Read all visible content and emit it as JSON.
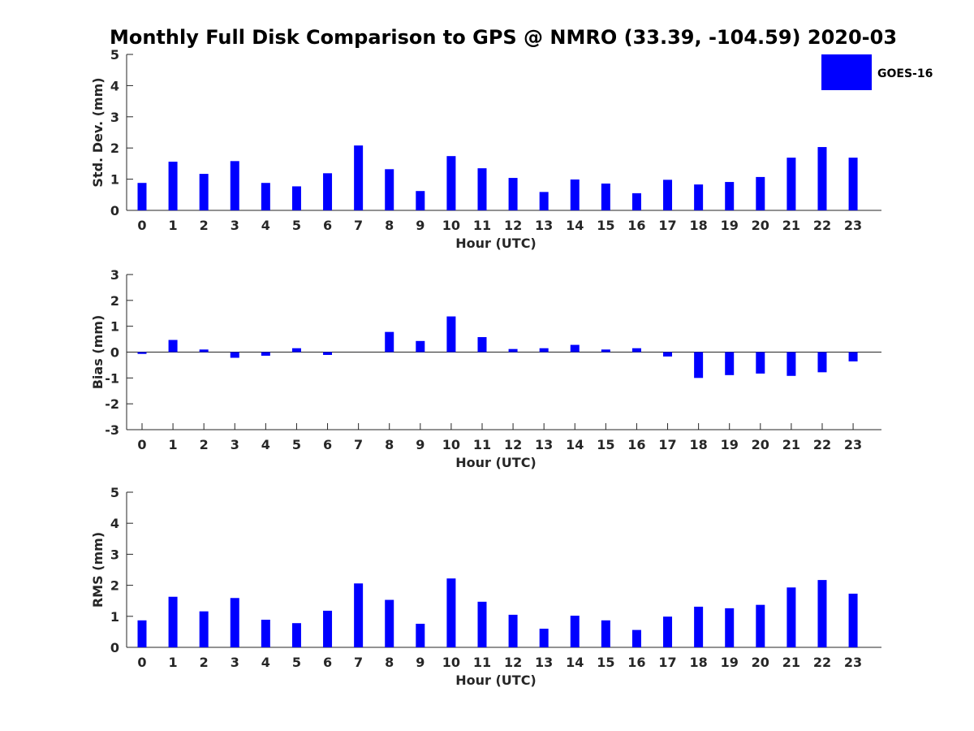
{
  "title": "Monthly Full Disk Comparison to GPS @ NMRO (33.39, -104.59) 2020-03",
  "legend": {
    "label": "GOES-16",
    "color": "#0000ff",
    "placement": "top-right"
  },
  "chart_data": [
    {
      "type": "bar",
      "ylabel": "Std. Dev. (mm)",
      "xlabel": "Hour (UTC)",
      "ylim": [
        0,
        5
      ],
      "yticks": [
        0,
        1,
        2,
        3,
        4,
        5
      ],
      "categories": [
        "0",
        "1",
        "2",
        "3",
        "4",
        "5",
        "6",
        "7",
        "8",
        "9",
        "10",
        "11",
        "12",
        "13",
        "14",
        "15",
        "16",
        "17",
        "18",
        "19",
        "20",
        "21",
        "22",
        "23"
      ],
      "series": [
        {
          "name": "GOES-16",
          "color": "#0000ff",
          "values": [
            0.88,
            1.56,
            1.17,
            1.58,
            0.88,
            0.77,
            1.19,
            2.08,
            1.32,
            0.62,
            1.74,
            1.35,
            1.04,
            0.59,
            0.99,
            0.86,
            0.55,
            0.98,
            0.83,
            0.91,
            1.07,
            1.69,
            2.03,
            1.69
          ]
        }
      ],
      "grid": false
    },
    {
      "type": "bar",
      "ylabel": "Bias (mm)",
      "xlabel": "Hour (UTC)",
      "ylim": [
        -3,
        3
      ],
      "yticks": [
        -3,
        -2,
        -1,
        0,
        1,
        2,
        3
      ],
      "categories": [
        "0",
        "1",
        "2",
        "3",
        "4",
        "5",
        "6",
        "7",
        "8",
        "9",
        "10",
        "11",
        "12",
        "13",
        "14",
        "15",
        "16",
        "17",
        "18",
        "19",
        "20",
        "21",
        "22",
        "23"
      ],
      "series": [
        {
          "name": "GOES-16",
          "color": "#0000ff",
          "values": [
            -0.07,
            0.47,
            0.1,
            -0.22,
            -0.14,
            0.15,
            -0.11,
            0.0,
            0.78,
            0.43,
            1.38,
            0.58,
            0.12,
            0.15,
            0.28,
            0.1,
            0.15,
            -0.17,
            -1.0,
            -0.89,
            -0.83,
            -0.92,
            -0.78,
            -0.36
          ]
        }
      ],
      "grid": false
    },
    {
      "type": "bar",
      "ylabel": "RMS (mm)",
      "xlabel": "Hour (UTC)",
      "ylim": [
        0,
        5
      ],
      "yticks": [
        0,
        1,
        2,
        3,
        4,
        5
      ],
      "categories": [
        "0",
        "1",
        "2",
        "3",
        "4",
        "5",
        "6",
        "7",
        "8",
        "9",
        "10",
        "11",
        "12",
        "13",
        "14",
        "15",
        "16",
        "17",
        "18",
        "19",
        "20",
        "21",
        "22",
        "23"
      ],
      "series": [
        {
          "name": "GOES-16",
          "color": "#0000ff",
          "values": [
            0.87,
            1.63,
            1.16,
            1.59,
            0.89,
            0.78,
            1.18,
            2.06,
            1.53,
            0.76,
            2.22,
            1.47,
            1.05,
            0.6,
            1.02,
            0.87,
            0.56,
            0.99,
            1.31,
            1.26,
            1.37,
            1.93,
            2.17,
            1.73
          ]
        }
      ],
      "grid": false
    }
  ]
}
